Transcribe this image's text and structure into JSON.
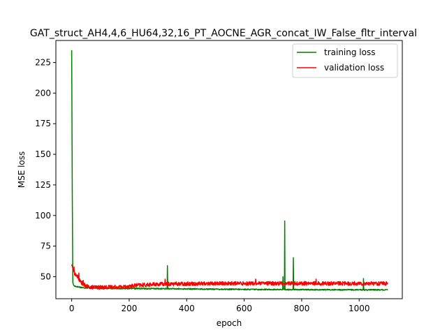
{
  "chart_data": {
    "type": "line",
    "title": "GAT_struct_AH4,4,6_HU64,32,16_PT_AOCNE_AGR_concat_IW_False_fltr_interval",
    "xlabel": "epoch",
    "ylabel": "MSE loss",
    "xlim": [
      -55,
      1150
    ],
    "ylim": [
      32,
      243
    ],
    "xticks": [
      0,
      200,
      400,
      600,
      800,
      1000
    ],
    "yticks": [
      50,
      75,
      100,
      125,
      150,
      175,
      200,
      225
    ],
    "grid": false,
    "legend_position": "top-right",
    "epochs": 1100,
    "series": [
      {
        "name": "training loss",
        "color": "#008000",
        "keypoints": [
          [
            0,
            235
          ],
          [
            2,
            120
          ],
          [
            4,
            45
          ],
          [
            8,
            42.5
          ],
          [
            15,
            42
          ],
          [
            40,
            41
          ],
          [
            100,
            40.5
          ],
          [
            300,
            40.2
          ],
          [
            600,
            39.6
          ],
          [
            900,
            39.3
          ],
          [
            1100,
            39.2
          ]
        ],
        "spikes": [
          [
            333,
            59
          ],
          [
            735,
            50
          ],
          [
            741,
            95.5
          ],
          [
            771,
            65.5
          ],
          [
            1015,
            48.5
          ]
        ]
      },
      {
        "name": "validation loss",
        "color": "#ff0000",
        "keypoints": [
          [
            0,
            60
          ],
          [
            5,
            56
          ],
          [
            12,
            52
          ],
          [
            20,
            50
          ],
          [
            30,
            46
          ],
          [
            45,
            43
          ],
          [
            60,
            41.5
          ],
          [
            100,
            41.3
          ],
          [
            180,
            41.8
          ],
          [
            230,
            43
          ],
          [
            320,
            44
          ],
          [
            500,
            44.5
          ],
          [
            800,
            44.5
          ],
          [
            1100,
            44.5
          ]
        ],
        "spikes": [
          [
            8,
            58
          ],
          [
            25,
            53
          ],
          [
            40,
            47
          ],
          [
            325,
            48
          ],
          [
            640,
            48
          ],
          [
            850,
            48
          ]
        ]
      }
    ]
  }
}
